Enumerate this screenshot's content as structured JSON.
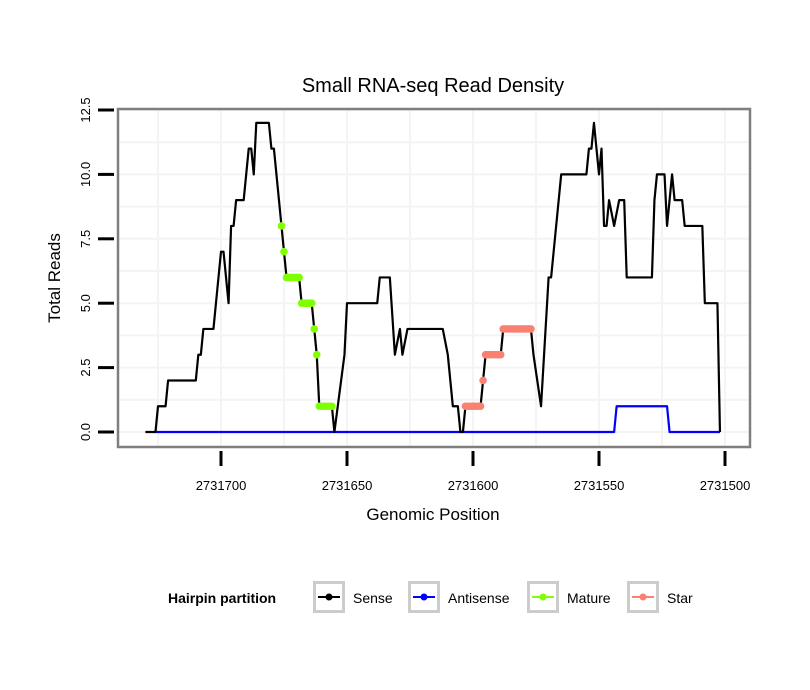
{
  "chart_data": {
    "type": "line",
    "title": "Small RNA-seq Read Density",
    "xlabel": "Genomic Position",
    "ylabel": "Total Reads",
    "x_reversed": true,
    "xlim": [
      2731740,
      2731490
    ],
    "ylim": [
      -0.5,
      12.5
    ],
    "x_ticks": [
      2731700,
      2731650,
      2731600,
      2731550,
      2731500
    ],
    "x_tick_labels": [
      "2731700",
      "2731650",
      "2731600",
      "2731550",
      "2731500"
    ],
    "y_ticks": [
      0,
      2.5,
      5,
      7.5,
      10,
      12.5
    ],
    "y_tick_labels": [
      "0.0",
      "2.5",
      "5.0",
      "7.5",
      "10.0",
      "12.5"
    ],
    "grid": true,
    "legend": {
      "title": "Hairpin partition",
      "placement": "bottom",
      "entries": [
        {
          "name": "Sense",
          "color": "#000000"
        },
        {
          "name": "Antisense",
          "color": "#0000ff"
        },
        {
          "name": "Mature",
          "color": "#7fff00"
        },
        {
          "name": "Star",
          "color": "#fa8072"
        }
      ]
    },
    "series": [
      {
        "name": "Sense",
        "color": "#000000",
        "points": [
          [
            2731730,
            0
          ],
          [
            2731726,
            0
          ],
          [
            2731725,
            1
          ],
          [
            2731722,
            1
          ],
          [
            2731721,
            2
          ],
          [
            2731710,
            2
          ],
          [
            2731709,
            3
          ],
          [
            2731708,
            3
          ],
          [
            2731707,
            4
          ],
          [
            2731703,
            4
          ],
          [
            2731702,
            5
          ],
          [
            2731701,
            6
          ],
          [
            2731700,
            7
          ],
          [
            2731699,
            7
          ],
          [
            2731697,
            5
          ],
          [
            2731696,
            8
          ],
          [
            2731695,
            8
          ],
          [
            2731694,
            9
          ],
          [
            2731691,
            9
          ],
          [
            2731690,
            10
          ],
          [
            2731689,
            11
          ],
          [
            2731688,
            11
          ],
          [
            2731687,
            10
          ],
          [
            2731686,
            12
          ],
          [
            2731681,
            12
          ],
          [
            2731680,
            11
          ],
          [
            2731679,
            11
          ],
          [
            2731678,
            10
          ],
          [
            2731677,
            9
          ],
          [
            2731676,
            8
          ],
          [
            2731675,
            7
          ],
          [
            2731674,
            6
          ],
          [
            2731669,
            6
          ],
          [
            2731668,
            5
          ],
          [
            2731664,
            5
          ],
          [
            2731663,
            4
          ],
          [
            2731662,
            3
          ],
          [
            2731661,
            1
          ],
          [
            2731656,
            1
          ],
          [
            2731655,
            0
          ],
          [
            2731651,
            3
          ],
          [
            2731650,
            5
          ],
          [
            2731638,
            5
          ],
          [
            2731637,
            6
          ],
          [
            2731633,
            6
          ],
          [
            2731631,
            3
          ],
          [
            2731629,
            4
          ],
          [
            2731628,
            3
          ],
          [
            2731626,
            4
          ],
          [
            2731612,
            4
          ],
          [
            2731610,
            3
          ],
          [
            2731608,
            1
          ],
          [
            2731606,
            1
          ],
          [
            2731605,
            0
          ],
          [
            2731604,
            0
          ],
          [
            2731603,
            1
          ],
          [
            2731597,
            1
          ],
          [
            2731596,
            2
          ],
          [
            2731595,
            3
          ],
          [
            2731589,
            3
          ],
          [
            2731588,
            4
          ],
          [
            2731577,
            4
          ],
          [
            2731576,
            3
          ],
          [
            2731573,
            1
          ],
          [
            2731570,
            6
          ],
          [
            2731569,
            6
          ],
          [
            2731568,
            7
          ],
          [
            2731565,
            10
          ],
          [
            2731555,
            10
          ],
          [
            2731554,
            11
          ],
          [
            2731553,
            11
          ],
          [
            2731552,
            12
          ],
          [
            2731550,
            10
          ],
          [
            2731549,
            11
          ],
          [
            2731548,
            8
          ],
          [
            2731547,
            8
          ],
          [
            2731546,
            9
          ],
          [
            2731544,
            8
          ],
          [
            2731542,
            9
          ],
          [
            2731540,
            9
          ],
          [
            2731539,
            6
          ],
          [
            2731529,
            6
          ],
          [
            2731528,
            9
          ],
          [
            2731527,
            10
          ],
          [
            2731524,
            10
          ],
          [
            2731523,
            8
          ],
          [
            2731521,
            10
          ],
          [
            2731520,
            9
          ],
          [
            2731517,
            9
          ],
          [
            2731516,
            8
          ],
          [
            2731509,
            8
          ],
          [
            2731508,
            5
          ],
          [
            2731503,
            5
          ],
          [
            2731502,
            0
          ]
        ]
      },
      {
        "name": "Antisense",
        "color": "#0000ff",
        "points": [
          [
            2731726,
            0
          ],
          [
            2731544,
            0
          ],
          [
            2731543,
            1
          ],
          [
            2731523,
            1
          ],
          [
            2731522,
            0
          ],
          [
            2731502,
            0
          ]
        ]
      },
      {
        "name": "Mature",
        "color": "#7fff00",
        "points": [
          [
            2731676,
            8
          ],
          [
            2731675,
            7
          ],
          [
            2731674,
            6
          ],
          [
            2731673,
            6
          ],
          [
            2731672,
            6
          ],
          [
            2731671,
            6
          ],
          [
            2731670,
            6
          ],
          [
            2731669,
            6
          ],
          [
            2731668,
            5
          ],
          [
            2731667,
            5
          ],
          [
            2731666,
            5
          ],
          [
            2731665,
            5
          ],
          [
            2731664,
            5
          ],
          [
            2731663,
            4
          ],
          [
            2731662,
            3
          ],
          [
            2731661,
            1
          ],
          [
            2731660,
            1
          ],
          [
            2731659,
            1
          ],
          [
            2731658,
            1
          ],
          [
            2731657,
            1
          ],
          [
            2731656,
            1
          ]
        ]
      },
      {
        "name": "Star",
        "color": "#fa8072",
        "points": [
          [
            2731603,
            1
          ],
          [
            2731602,
            1
          ],
          [
            2731601,
            1
          ],
          [
            2731600,
            1
          ],
          [
            2731599,
            1
          ],
          [
            2731598,
            1
          ],
          [
            2731597,
            1
          ],
          [
            2731596,
            2
          ],
          [
            2731595,
            3
          ],
          [
            2731594,
            3
          ],
          [
            2731593,
            3
          ],
          [
            2731592,
            3
          ],
          [
            2731591,
            3
          ],
          [
            2731590,
            3
          ],
          [
            2731589,
            3
          ],
          [
            2731588,
            4
          ],
          [
            2731587,
            4
          ],
          [
            2731586,
            4
          ],
          [
            2731585,
            4
          ],
          [
            2731584,
            4
          ],
          [
            2731583,
            4
          ],
          [
            2731582,
            4
          ],
          [
            2731581,
            4
          ],
          [
            2731580,
            4
          ],
          [
            2731579,
            4
          ],
          [
            2731578,
            4
          ],
          [
            2731577,
            4
          ]
        ]
      }
    ]
  }
}
